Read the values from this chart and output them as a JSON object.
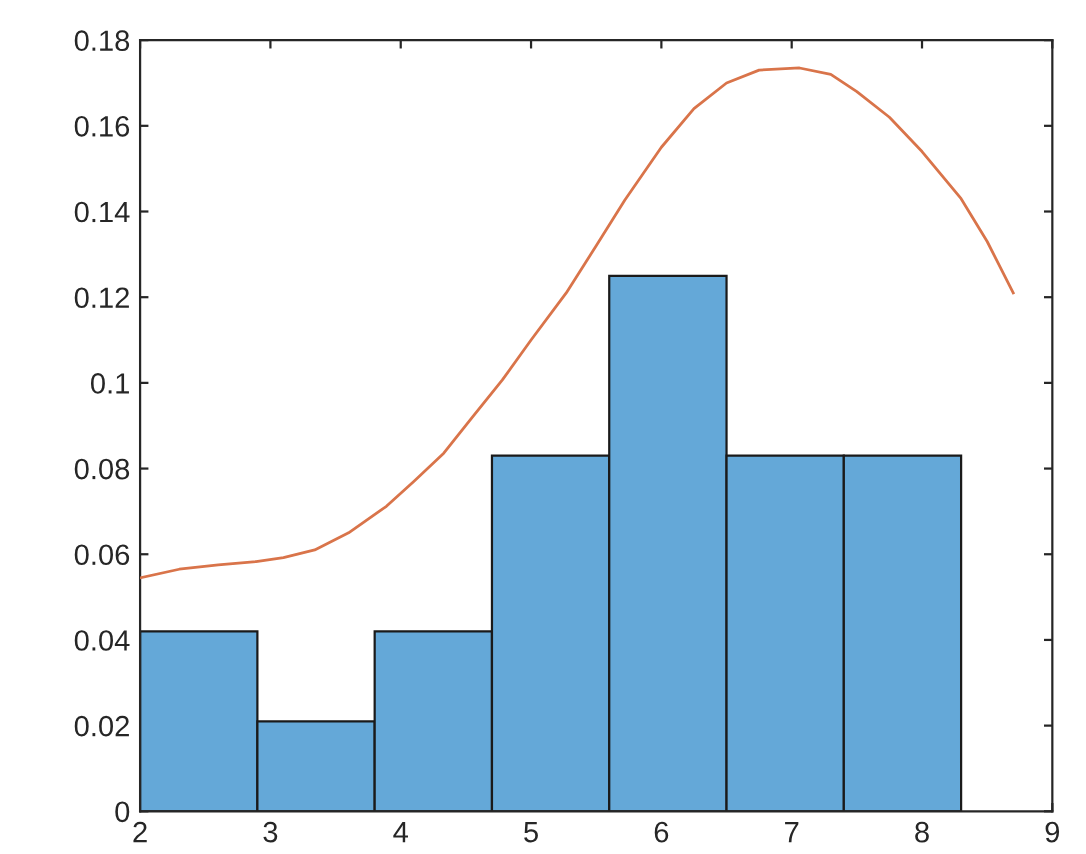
{
  "chart_data": {
    "type": "histogram",
    "series": [
      {
        "bins": [
          2,
          2.9,
          3.8,
          4.7,
          5.6,
          6.5,
          7.4,
          8.3
        ],
        "values": [
          0.042,
          0.021,
          0.042,
          0.083,
          0.125,
          0.083,
          0.083
        ],
        "color": "#64a8d8"
      },
      {
        "type": "line",
        "color": "#d9744a",
        "x": [
          2.0,
          2.3,
          2.6,
          2.89,
          3.1,
          3.34,
          3.6,
          3.89,
          4.1,
          4.33,
          4.55,
          4.78,
          5.0,
          5.27,
          5.5,
          5.72,
          6.0,
          6.25,
          6.5,
          6.75,
          7.06,
          7.3,
          7.5,
          7.75,
          8.0,
          8.3,
          8.5,
          8.7
        ],
        "values": [
          0.0545,
          0.0565,
          0.0575,
          0.0583,
          0.0592,
          0.061,
          0.065,
          0.0712,
          0.077,
          0.0836,
          0.092,
          0.1007,
          0.11,
          0.121,
          0.132,
          0.1427,
          0.155,
          0.164,
          0.17,
          0.173,
          0.1735,
          0.172,
          0.168,
          0.162,
          0.154,
          0.143,
          0.133,
          0.121
        ]
      }
    ],
    "xlim": [
      2,
      9
    ],
    "xticks": [
      2,
      3,
      4,
      5,
      6,
      7,
      8,
      9
    ],
    "ylim": [
      0,
      0.18
    ],
    "yticks": [
      0,
      0.02,
      0.04,
      0.06,
      0.08,
      0.1,
      0.12,
      0.14,
      0.16,
      0.18
    ],
    "grid": false,
    "legend": false
  }
}
